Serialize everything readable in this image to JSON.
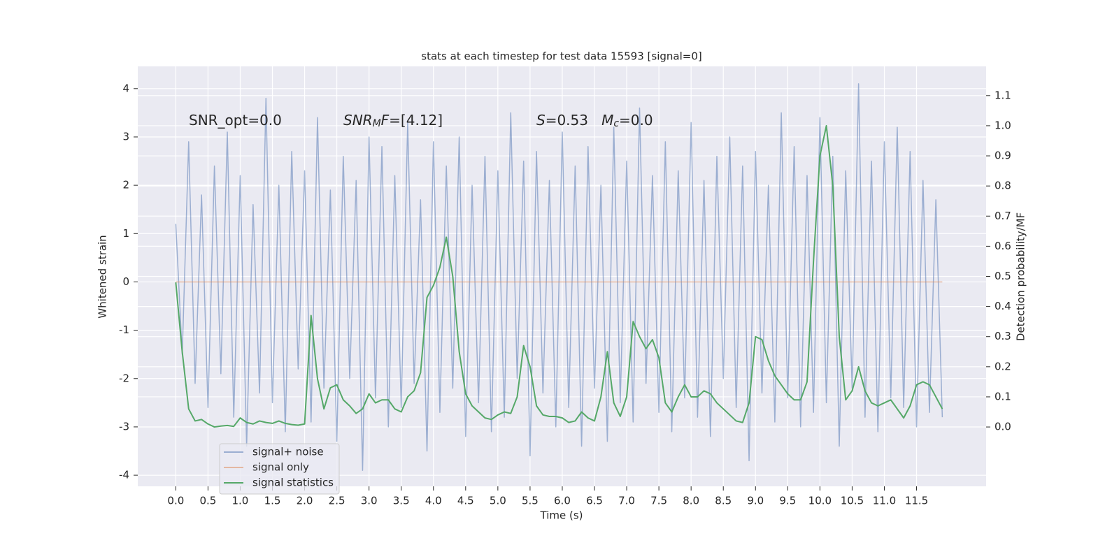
{
  "chart_data": {
    "type": "line",
    "title": "stats at each timestep for test data 15593 [signal=0]",
    "xlabel": "Time (s)",
    "ylabel": "Whitened strain",
    "y2label": "Detection probability/MF",
    "annotations": [
      [
        {
          "text": "SNR_opt=0.0"
        }
      ],
      [
        {
          "text": "SNR",
          "italic": true
        },
        {
          "text": "M",
          "italic": true,
          "sub": true
        },
        {
          "text": "F",
          "italic": true
        },
        {
          "text": "=[4.12]"
        }
      ],
      [
        {
          "text": "S",
          "italic": true
        },
        {
          "text": "=0.53   "
        },
        {
          "text": "M",
          "italic": true
        },
        {
          "text": "c",
          "italic": true,
          "sub": true
        },
        {
          "text": "=0.0"
        }
      ]
    ],
    "x": [
      0,
      0.1,
      0.2,
      0.3,
      0.4,
      0.5,
      0.6,
      0.7,
      0.8,
      0.9,
      1,
      1.1,
      1.2,
      1.3,
      1.4,
      1.5,
      1.6,
      1.7,
      1.8,
      1.9,
      2,
      2.1,
      2.2,
      2.3,
      2.4,
      2.5,
      2.6,
      2.7,
      2.8,
      2.9,
      3,
      3.1,
      3.2,
      3.3,
      3.4,
      3.5,
      3.6,
      3.7,
      3.8,
      3.9,
      4,
      4.1,
      4.2,
      4.3,
      4.4,
      4.5,
      4.6,
      4.7,
      4.8,
      4.9,
      5,
      5.1,
      5.2,
      5.3,
      5.4,
      5.5,
      5.6,
      5.7,
      5.8,
      5.9,
      6,
      6.1,
      6.2,
      6.3,
      6.4,
      6.5,
      6.6,
      6.7,
      6.8,
      6.9,
      7,
      7.1,
      7.2,
      7.3,
      7.4,
      7.5,
      7.6,
      7.7,
      7.8,
      7.9,
      8,
      8.1,
      8.2,
      8.3,
      8.4,
      8.5,
      8.6,
      8.7,
      8.8,
      8.9,
      9,
      9.1,
      9.2,
      9.3,
      9.4,
      9.5,
      9.6,
      9.7,
      9.8,
      9.9,
      10,
      10.1,
      10.2,
      10.3,
      10.4,
      10.5,
      10.6,
      10.7,
      10.8,
      10.9,
      11,
      11.1,
      11.2,
      11.3,
      11.4,
      11.5,
      11.6,
      11.7,
      11.8,
      11.9
    ],
    "series": [
      {
        "name": "signal+ noise",
        "color": "#4c72b0",
        "alpha": 0.5,
        "values": [
          1.2,
          -1.5,
          2.9,
          -2.1,
          1.8,
          -2.6,
          2.4,
          -1.9,
          3.1,
          -2.8,
          2.2,
          -3.4,
          1.6,
          -2.3,
          3.8,
          -2.5,
          2.0,
          -3.1,
          2.7,
          -1.8,
          2.3,
          -2.9,
          3.4,
          -2.2,
          1.9,
          -3.3,
          2.6,
          -2.0,
          2.1,
          -3.9,
          3.0,
          -2.4,
          2.8,
          -3.0,
          2.2,
          -2.6,
          3.3,
          -2.1,
          1.7,
          -3.5,
          2.9,
          -2.7,
          2.4,
          -2.2,
          3.0,
          -3.2,
          2.0,
          -2.5,
          2.6,
          -3.1,
          2.3,
          -2.8,
          3.5,
          -2.0,
          2.5,
          -3.6,
          2.7,
          -2.3,
          2.1,
          -3.0,
          3.1,
          -2.6,
          2.4,
          -3.4,
          2.8,
          -2.2,
          2.0,
          -3.3,
          3.2,
          -2.5,
          2.5,
          -2.9,
          3.6,
          -2.1,
          2.2,
          -2.7,
          2.9,
          -3.1,
          2.3,
          -2.4,
          3.3,
          -2.8,
          2.1,
          -3.2,
          2.6,
          -2.0,
          3.0,
          -2.6,
          2.4,
          -3.7,
          2.7,
          -2.3,
          2.0,
          -2.9,
          3.5,
          -2.4,
          2.8,
          -3.0,
          2.2,
          -2.7,
          3.4,
          -2.5,
          2.6,
          -3.4,
          2.3,
          -2.2,
          4.1,
          -2.8,
          2.5,
          -3.1,
          2.9,
          -2.4,
          3.2,
          -2.6,
          2.7,
          -3.0,
          2.1,
          -2.7,
          1.7,
          -2.8
        ]
      },
      {
        "name": "signal only",
        "color": "#dd8452",
        "alpha": 0.5,
        "values": [
          0,
          0,
          0,
          0,
          0,
          0,
          0,
          0,
          0,
          0,
          0,
          0,
          0,
          0,
          0,
          0,
          0,
          0,
          0,
          0,
          0,
          0,
          0,
          0,
          0,
          0,
          0,
          0,
          0,
          0,
          0,
          0,
          0,
          0,
          0,
          0,
          0,
          0,
          0,
          0,
          0,
          0,
          0,
          0,
          0,
          0,
          0,
          0,
          0,
          0,
          0,
          0,
          0,
          0,
          0,
          0,
          0,
          0,
          0,
          0,
          0,
          0,
          0,
          0,
          0,
          0,
          0,
          0,
          0,
          0,
          0,
          0,
          0,
          0,
          0,
          0,
          0,
          0,
          0,
          0,
          0,
          0,
          0,
          0,
          0,
          0,
          0,
          0,
          0,
          0,
          0,
          0,
          0,
          0,
          0,
          0,
          0,
          0,
          0,
          0,
          0,
          0,
          0,
          0,
          0,
          0,
          0,
          0,
          0,
          0,
          0,
          0,
          0,
          0,
          0,
          0,
          0,
          0,
          0,
          0
        ]
      },
      {
        "name": "signal statistics",
        "color": "#55a868",
        "alpha": 1,
        "axis": "y2",
        "values": [
          0.48,
          0.25,
          0.06,
          0.02,
          0.025,
          0.01,
          0.0,
          0.003,
          0.005,
          0.002,
          0.03,
          0.015,
          0.01,
          0.02,
          0.015,
          0.012,
          0.02,
          0.012,
          0.008,
          0.006,
          0.01,
          0.37,
          0.16,
          0.06,
          0.13,
          0.14,
          0.09,
          0.07,
          0.045,
          0.06,
          0.11,
          0.08,
          0.09,
          0.09,
          0.06,
          0.05,
          0.1,
          0.12,
          0.18,
          0.43,
          0.47,
          0.53,
          0.63,
          0.5,
          0.25,
          0.11,
          0.07,
          0.05,
          0.03,
          0.025,
          0.04,
          0.05,
          0.045,
          0.1,
          0.27,
          0.2,
          0.07,
          0.04,
          0.035,
          0.035,
          0.03,
          0.015,
          0.02,
          0.05,
          0.03,
          0.02,
          0.1,
          0.25,
          0.08,
          0.035,
          0.1,
          0.35,
          0.3,
          0.26,
          0.29,
          0.23,
          0.08,
          0.05,
          0.1,
          0.14,
          0.1,
          0.1,
          0.12,
          0.11,
          0.08,
          0.06,
          0.04,
          0.02,
          0.015,
          0.08,
          0.3,
          0.29,
          0.22,
          0.17,
          0.14,
          0.11,
          0.09,
          0.09,
          0.15,
          0.55,
          0.9,
          1.0,
          0.8,
          0.3,
          0.09,
          0.12,
          0.2,
          0.12,
          0.08,
          0.07,
          0.08,
          0.09,
          0.06,
          0.03,
          0.07,
          0.14,
          0.15,
          0.14,
          0.1,
          0.06
        ]
      }
    ],
    "xlim": [
      -0.59,
      12.58
    ],
    "xticks": [
      {
        "value": 0,
        "label": "0.0"
      },
      0.5,
      {
        "value": 1,
        "label": "1.0"
      },
      1.5,
      {
        "value": 2,
        "label": "2.0"
      },
      2.5,
      {
        "value": 3,
        "label": "3.0"
      },
      3.5,
      {
        "value": 4,
        "label": "4.0"
      },
      4.5,
      {
        "value": 5,
        "label": "5.0"
      },
      5.5,
      {
        "value": 6,
        "label": "6.0"
      },
      6.5,
      {
        "value": 7,
        "label": "7.0"
      },
      7.5,
      {
        "value": 8,
        "label": "8.0"
      },
      8.5,
      {
        "value": 9,
        "label": "9.0"
      },
      9.5,
      {
        "value": 10,
        "label": "10.0"
      },
      10.5,
      {
        "value": 11,
        "label": "11.0"
      },
      11.5
    ],
    "ylim": [
      -4.23,
      4.46
    ],
    "yticks": [
      -4,
      -3,
      -2,
      -1,
      0,
      1,
      2,
      3,
      4
    ],
    "y2lim": [
      -0.197,
      1.197
    ],
    "y2ticks": [
      {
        "value": 0,
        "label": "0.0"
      },
      0.1,
      0.2,
      0.3,
      0.4,
      0.5,
      0.6,
      0.7,
      0.8,
      0.9,
      {
        "value": 1,
        "label": "1.0"
      },
      1.1
    ],
    "grid": true,
    "legend": "lower left"
  }
}
